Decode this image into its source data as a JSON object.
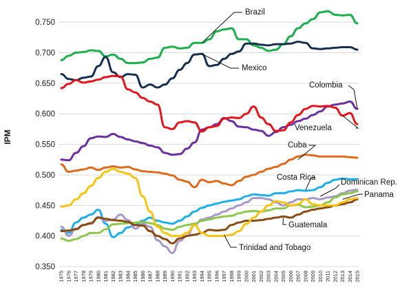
{
  "chart_data": {
    "type": "line",
    "title": "",
    "xlabel": "",
    "ylabel": "IPM",
    "ylim": [
      0.35,
      0.775
    ],
    "y_ticks": [
      "0.350",
      "0.400",
      "0.450",
      "0.500",
      "0.550",
      "0.600",
      "0.650",
      "0.700",
      "0.750"
    ],
    "grid": true,
    "legend": "none",
    "x": [
      "1975",
      "1976",
      "1977",
      "1978",
      "1979",
      "1980",
      "1981",
      "1982",
      "1983",
      "1984",
      "1985",
      "1986",
      "1987",
      "1988",
      "1989",
      "1990",
      "1991",
      "1992",
      "1993",
      "1994",
      "1995",
      "1996",
      "1997",
      "1998",
      "1999",
      "2000",
      "2001",
      "2002",
      "2003",
      "2004",
      "2005",
      "2006",
      "2007",
      "2008",
      "2009",
      "2010",
      "2011",
      "2012",
      "2013",
      "2014",
      "2015"
    ],
    "series": [
      {
        "name": "Brazil",
        "color": "#1ab04a",
        "values": [
          0.688,
          0.695,
          0.7,
          0.701,
          0.704,
          0.703,
          0.694,
          0.697,
          0.69,
          0.683,
          0.683,
          0.684,
          0.69,
          0.692,
          0.708,
          0.71,
          0.707,
          0.708,
          0.716,
          0.716,
          0.722,
          0.735,
          0.738,
          0.74,
          0.722,
          0.722,
          0.712,
          0.708,
          0.703,
          0.705,
          0.714,
          0.727,
          0.74,
          0.748,
          0.755,
          0.766,
          0.768,
          0.762,
          0.761,
          0.762,
          0.748
        ]
      },
      {
        "name": "Mexico",
        "color": "#142f50",
        "values": [
          0.665,
          0.657,
          0.655,
          0.659,
          0.661,
          0.678,
          0.693,
          0.668,
          0.66,
          0.665,
          0.664,
          0.643,
          0.648,
          0.643,
          0.648,
          0.658,
          0.672,
          0.683,
          0.697,
          0.698,
          0.678,
          0.68,
          0.69,
          0.698,
          0.702,
          0.715,
          0.715,
          0.713,
          0.712,
          0.714,
          0.714,
          0.715,
          0.718,
          0.716,
          0.707,
          0.706,
          0.707,
          0.708,
          0.709,
          0.709,
          0.705
        ]
      },
      {
        "name": "Colombia",
        "color": "#6b2fa0",
        "values": [
          0.525,
          0.524,
          0.536,
          0.547,
          0.56,
          0.563,
          0.562,
          0.567,
          0.562,
          0.558,
          0.555,
          0.552,
          0.548,
          0.545,
          0.536,
          0.533,
          0.534,
          0.543,
          0.553,
          0.574,
          0.578,
          0.583,
          0.593,
          0.588,
          0.579,
          0.578,
          0.574,
          0.572,
          0.564,
          0.57,
          0.578,
          0.582,
          0.588,
          0.592,
          0.598,
          0.604,
          0.612,
          0.615,
          0.617,
          0.62,
          0.608
        ]
      },
      {
        "name": "Venezuela",
        "color": "#e8141b",
        "values": [
          0.642,
          0.649,
          0.655,
          0.651,
          0.653,
          0.656,
          0.66,
          0.662,
          0.661,
          0.64,
          0.635,
          0.626,
          0.62,
          0.615,
          0.578,
          0.575,
          0.586,
          0.588,
          0.586,
          0.571,
          0.578,
          0.58,
          0.592,
          0.594,
          0.593,
          0.6,
          0.612,
          0.594,
          0.583,
          0.572,
          0.573,
          0.586,
          0.598,
          0.608,
          0.613,
          0.612,
          0.613,
          0.61,
          0.597,
          0.601,
          0.583
        ]
      },
      {
        "name": "Cuba",
        "color": "#e06a19",
        "values": [
          0.517,
          0.505,
          0.507,
          0.509,
          0.512,
          0.508,
          0.512,
          0.514,
          0.512,
          0.513,
          0.509,
          0.506,
          0.505,
          0.504,
          0.502,
          0.499,
          0.492,
          0.489,
          0.48,
          0.492,
          0.488,
          0.49,
          0.486,
          0.483,
          0.49,
          0.497,
          0.5,
          0.505,
          0.51,
          0.513,
          0.518,
          0.525,
          0.53,
          0.533,
          0.532,
          0.53,
          0.53,
          0.53,
          0.53,
          0.529,
          0.528
        ]
      },
      {
        "name": "Costa Rica",
        "color": "#1ab0e8",
        "values": [
          0.41,
          0.405,
          0.422,
          0.43,
          0.435,
          0.443,
          0.42,
          0.398,
          0.405,
          0.414,
          0.418,
          0.425,
          0.43,
          0.425,
          0.422,
          0.42,
          0.425,
          0.432,
          0.44,
          0.446,
          0.45,
          0.453,
          0.456,
          0.458,
          0.46,
          0.465,
          0.468,
          0.467,
          0.466,
          0.47,
          0.47,
          0.473,
          0.475,
          0.474,
          0.475,
          0.48,
          0.487,
          0.492,
          0.494,
          0.493,
          0.493
        ]
      },
      {
        "name": "Dominican Rep.",
        "color": "#a898c8",
        "values": [
          0.415,
          0.4,
          0.412,
          0.418,
          0.42,
          0.431,
          0.425,
          0.427,
          0.435,
          0.426,
          0.412,
          0.42,
          0.415,
          0.393,
          0.383,
          0.372,
          0.392,
          0.4,
          0.418,
          0.427,
          0.43,
          0.435,
          0.44,
          0.445,
          0.45,
          0.455,
          0.462,
          0.462,
          0.46,
          0.455,
          0.45,
          0.455,
          0.46,
          0.46,
          0.462,
          0.46,
          0.463,
          0.465,
          0.47,
          0.474,
          0.476
        ]
      },
      {
        "name": "Panama",
        "color": "#8cc84b",
        "values": [
          0.396,
          0.392,
          0.395,
          0.4,
          0.405,
          0.405,
          0.411,
          0.419,
          0.42,
          0.421,
          0.422,
          0.423,
          0.421,
          0.418,
          0.412,
          0.41,
          0.415,
          0.418,
          0.42,
          0.425,
          0.427,
          0.43,
          0.432,
          0.433,
          0.437,
          0.44,
          0.441,
          0.44,
          0.442,
          0.445,
          0.445,
          0.45,
          0.451,
          0.447,
          0.448,
          0.45,
          0.455,
          0.463,
          0.468,
          0.47,
          0.473
        ]
      },
      {
        "name": "Guatemala",
        "color": "#8b4a12",
        "values": [
          0.408,
          0.409,
          0.411,
          0.418,
          0.421,
          0.43,
          0.428,
          0.426,
          0.425,
          0.423,
          0.418,
          0.417,
          0.408,
          0.4,
          0.395,
          0.388,
          0.396,
          0.4,
          0.402,
          0.405,
          0.41,
          0.409,
          0.41,
          0.418,
          0.422,
          0.425,
          0.425,
          0.426,
          0.428,
          0.43,
          0.432,
          0.43,
          0.435,
          0.44,
          0.443,
          0.445,
          0.447,
          0.45,
          0.452,
          0.455,
          0.46
        ]
      },
      {
        "name": "Trinidad and Tobago",
        "color": "#f6c411",
        "values": [
          0.448,
          0.45,
          0.46,
          0.47,
          0.482,
          0.495,
          0.505,
          0.51,
          0.505,
          0.502,
          0.495,
          0.465,
          0.44,
          0.415,
          0.405,
          0.4,
          0.4,
          0.405,
          0.418,
          0.405,
          0.4,
          0.4,
          0.4,
          0.402,
          0.408,
          0.42,
          0.43,
          0.44,
          0.45,
          0.457,
          0.455,
          0.45,
          0.452,
          0.46,
          0.452,
          0.45,
          0.45,
          0.45,
          0.455,
          0.46,
          0.462
        ]
      }
    ],
    "annotations": [
      {
        "series": "Brazil",
        "text": "Brazil"
      },
      {
        "series": "Mexico",
        "text": "Mexico"
      },
      {
        "series": "Colombia",
        "text": "Colombia"
      },
      {
        "series": "Venezuela",
        "text": "Venezuela"
      },
      {
        "series": "Cuba",
        "text": "Cuba"
      },
      {
        "series": "Costa Rica",
        "text": "Costa Rica"
      },
      {
        "series": "Dominican Rep.",
        "text": "Dominican Rep."
      },
      {
        "series": "Panama",
        "text": "Panama"
      },
      {
        "series": "Guatemala",
        "text": "Guatemala"
      },
      {
        "series": "Trinidad and Tobago",
        "text": "Trinidad and Tobago"
      }
    ]
  }
}
